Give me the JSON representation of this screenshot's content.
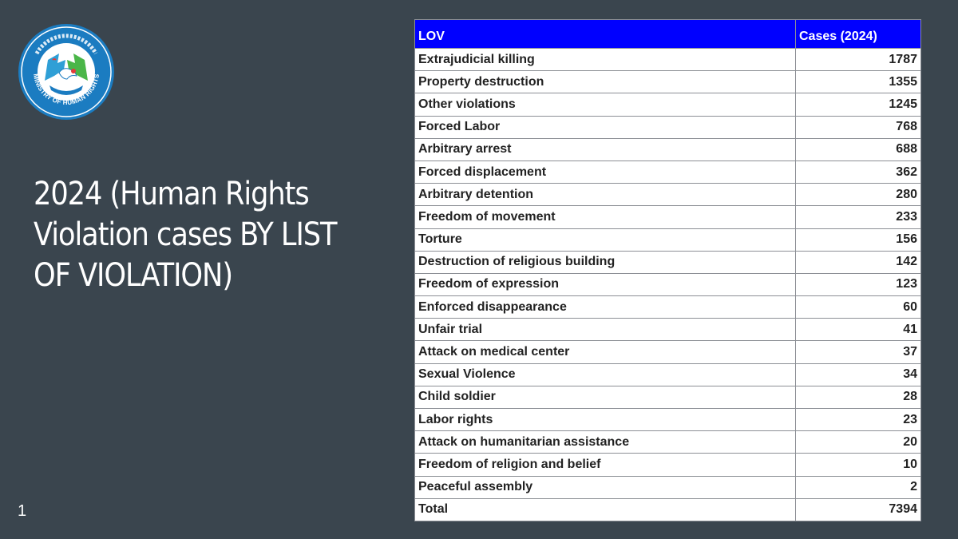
{
  "slide": {
    "title": "2024 (Human Rights Violation cases BY LIST OF VIOLATION)",
    "number": "1"
  },
  "logo": {
    "icon": "ministry-of-human-rights-seal",
    "ring_text": "MINISTRY OF HUMAN RIGHTS",
    "colors": {
      "ring": "#1b7cc1",
      "hands_left": "#2f9fd6",
      "hands_right": "#4ab648",
      "accent": "#e23b3b"
    }
  },
  "table": {
    "headers": [
      "LOV",
      "Cases (2024)"
    ],
    "header_bg": "#0000ff",
    "rows": [
      {
        "lov": "Extrajudicial killing",
        "cases": "1787"
      },
      {
        "lov": "Property destruction",
        "cases": "1355"
      },
      {
        "lov": "Other violations",
        "cases": "1245"
      },
      {
        "lov": "Forced Labor",
        "cases": "768"
      },
      {
        "lov": "Arbitrary arrest",
        "cases": "688"
      },
      {
        "lov": "Forced displacement",
        "cases": "362"
      },
      {
        "lov": "Arbitrary detention",
        "cases": "280"
      },
      {
        "lov": "Freedom of movement",
        "cases": "233"
      },
      {
        "lov": "Torture",
        "cases": "156"
      },
      {
        "lov": "Destruction of religious building",
        "cases": "142"
      },
      {
        "lov": "Freedom of expression",
        "cases": "123"
      },
      {
        "lov": "Enforced disappearance",
        "cases": "60"
      },
      {
        "lov": "Unfair trial",
        "cases": "41"
      },
      {
        "lov": "Attack on medical center",
        "cases": "37"
      },
      {
        "lov": "Sexual Violence",
        "cases": "34"
      },
      {
        "lov": "Child soldier",
        "cases": "28"
      },
      {
        "lov": "Labor rights",
        "cases": "23"
      },
      {
        "lov": "Attack on humanitarian assistance",
        "cases": "20"
      },
      {
        "lov": "Freedom of religion and belief",
        "cases": "10"
      },
      {
        "lov": "Peaceful assembly",
        "cases": "2"
      },
      {
        "lov": "Total",
        "cases": "7394"
      }
    ]
  }
}
